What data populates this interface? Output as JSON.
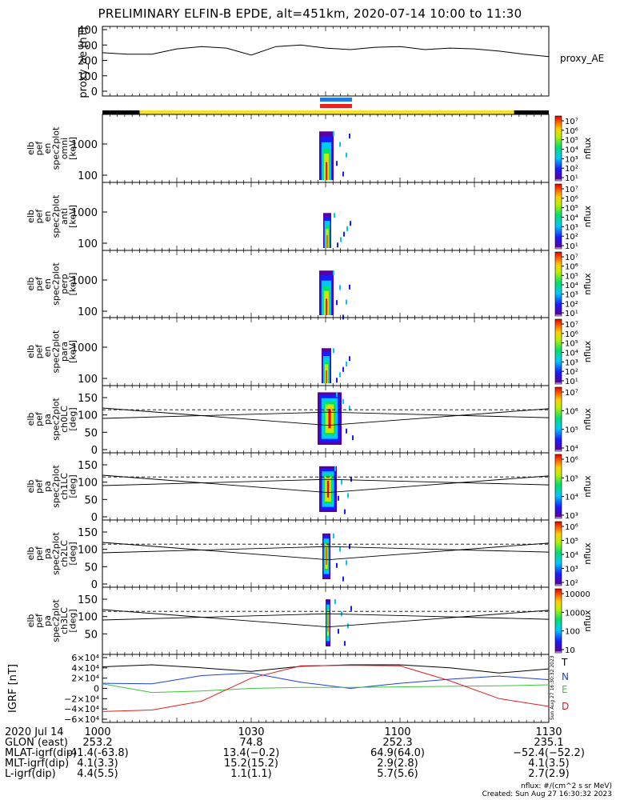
{
  "title": "PRELIMINARY ELFIN-B EPDE, alt=451km, 2020-07-14 10:00 to 11:30",
  "colors": {
    "ae_line": "#000000",
    "bar_yellow": "#f5e22a",
    "bar_black": "#000000",
    "bar_blue": "#1e7be8",
    "bar_red": "#e8231e",
    "grf_T": "#000000",
    "grf_N": "#1e3fe0",
    "grf_E": "#3cc43c",
    "grf_D": "#e01e1e"
  },
  "chart_data": [
    {
      "type": "line",
      "panel": "proxy_ae",
      "ylabel": "proxy_ae [nT]",
      "legend": "proxy_AE",
      "yticks": [
        "400",
        "300",
        "200",
        "100",
        "0"
      ],
      "ylim": [
        0,
        400
      ],
      "x_minutes": [
        0,
        5,
        10,
        15,
        20,
        25,
        30,
        35,
        40,
        45,
        50,
        55,
        60,
        65,
        70,
        75,
        80,
        85,
        90
      ],
      "values": [
        250,
        240,
        240,
        275,
        290,
        280,
        235,
        290,
        300,
        280,
        270,
        285,
        290,
        270,
        280,
        275,
        260,
        240,
        225
      ]
    },
    {
      "type": "heatmap",
      "panel": "en omni",
      "ylabel": [
        "elb",
        "pef",
        "en",
        "spec2plot",
        "omni",
        "[keV]"
      ],
      "yticks": [
        "1000",
        "100"
      ],
      "colorbar": {
        "label": "nflux",
        "ticks": [
          "10⁷",
          "10⁶",
          "10⁵",
          "10⁴",
          "10³",
          "10²",
          "10¹"
        ]
      }
    },
    {
      "type": "heatmap",
      "panel": "en anti",
      "ylabel": [
        "elb",
        "pef",
        "en",
        "spec2plot",
        "anti",
        "[keV]"
      ],
      "yticks": [
        "1000",
        "100"
      ],
      "colorbar": {
        "label": "nflux",
        "ticks": [
          "10⁷",
          "10⁶",
          "10⁵",
          "10⁴",
          "10³",
          "10²",
          "10¹"
        ]
      }
    },
    {
      "type": "heatmap",
      "panel": "en perp",
      "ylabel": [
        "elb",
        "pef",
        "en",
        "spec2plot",
        "perp",
        "[keV]"
      ],
      "yticks": [
        "1000",
        "100"
      ],
      "colorbar": {
        "label": "nflux",
        "ticks": [
          "10⁷",
          "10⁶",
          "10⁵",
          "10⁴",
          "10³",
          "10²",
          "10¹"
        ]
      }
    },
    {
      "type": "heatmap",
      "panel": "en para",
      "ylabel": [
        "elb",
        "pef",
        "en",
        "spec2plot",
        "para",
        "[keV]"
      ],
      "yticks": [
        "1000",
        "100"
      ],
      "colorbar": {
        "label": "nflux",
        "ticks": [
          "10⁷",
          "10⁶",
          "10⁵",
          "10⁴",
          "10³",
          "10²",
          "10¹"
        ]
      }
    },
    {
      "type": "heatmap",
      "panel": "ch0LC",
      "ylabel": [
        "elb",
        "pef",
        "pa",
        "spec2plot",
        "ch0LC",
        "[deg]"
      ],
      "yticks": [
        "150",
        "100",
        "50",
        "0"
      ],
      "colorbar": {
        "label": "nflux",
        "ticks": [
          "10⁷",
          "10⁶",
          "10⁵",
          "10⁴"
        ]
      }
    },
    {
      "type": "heatmap",
      "panel": "ch1LC",
      "ylabel": [
        "elb",
        "pef",
        "pa",
        "spec2plot",
        "ch1LC",
        "[deg]"
      ],
      "yticks": [
        "150",
        "100",
        "50",
        "0"
      ],
      "colorbar": {
        "label": "nflux",
        "ticks": [
          "10⁶",
          "10⁵",
          "10⁴",
          "10³"
        ]
      }
    },
    {
      "type": "heatmap",
      "panel": "ch2LC",
      "ylabel": [
        "elb",
        "pef",
        "pa",
        "spec2plot",
        "ch2LC",
        "[deg]"
      ],
      "yticks": [
        "150",
        "100",
        "50",
        "0"
      ],
      "colorbar": {
        "label": "nflux",
        "ticks": [
          "10⁶",
          "10⁵",
          "10⁴",
          "10³",
          "10²"
        ]
      }
    },
    {
      "type": "heatmap",
      "panel": "ch3LC",
      "ylabel": [
        "elb",
        "pef",
        "pa",
        "spec2plot",
        "ch3LC",
        "[deg]"
      ],
      "yticks": [
        "150",
        "100",
        "50"
      ],
      "colorbar": {
        "label": "nflux",
        "ticks": [
          "10000",
          "1000",
          "100",
          "10"
        ]
      }
    },
    {
      "type": "line",
      "panel": "IGRF",
      "ylabel": "IGRF [nT]",
      "yticks": [
        "6×10⁴",
        "4×10⁴",
        "2×10⁴",
        "0",
        "−2×10⁴",
        "−4×10⁴",
        "−6×10⁴"
      ],
      "ylim": [
        -60000,
        60000
      ],
      "legend": [
        "T",
        "N",
        "E",
        "D"
      ],
      "x_minutes": [
        0,
        10,
        20,
        30,
        40,
        50,
        60,
        70,
        80,
        90
      ],
      "series": [
        {
          "name": "T",
          "values": [
            42000,
            46000,
            40000,
            33000,
            43000,
            46000,
            46000,
            40000,
            30000,
            38000
          ]
        },
        {
          "name": "N",
          "values": [
            10000,
            9000,
            25000,
            30000,
            12000,
            0,
            10000,
            18000,
            24000,
            17000
          ]
        },
        {
          "name": "E",
          "values": [
            9000,
            -8000,
            -5000,
            0,
            2000,
            2000,
            3000,
            4000,
            5000,
            7000
          ]
        },
        {
          "name": "D",
          "values": [
            -45000,
            -42000,
            -25000,
            20000,
            44000,
            45000,
            44000,
            15000,
            -20000,
            -35000
          ]
        }
      ]
    }
  ],
  "footer": {
    "row_labels": [
      "2020 Jul 14",
      "GLON (east)",
      "MLAT-igrf(dip)",
      "MLT-igrf(dip)",
      "L-igrf(dip)"
    ],
    "times": [
      "1000",
      "1030",
      "1100",
      "1130"
    ],
    "columns": [
      [
        "253.2",
        "‑41.4(‑63.8)",
        "4.1(3.3)",
        "4.4(5.5)"
      ],
      [
        "74.8",
        "13.4(−0.2)",
        "15.2(15.2)",
        "1.1(1.1)"
      ],
      [
        "252.3",
        "64.9(64.0)",
        "2.9(2.8)",
        "5.7(5.6)"
      ],
      [
        "235.1",
        "−52.4(−52.2)",
        "4.1(3.5)",
        "2.7(2.9)"
      ]
    ],
    "units_note": "nflux: #/(cm^2 s sr MeV)",
    "created": "Created: Sun Aug 27 16:30:32 2023",
    "side_stamp": "Sun Aug 27 16:30:32 2023"
  }
}
